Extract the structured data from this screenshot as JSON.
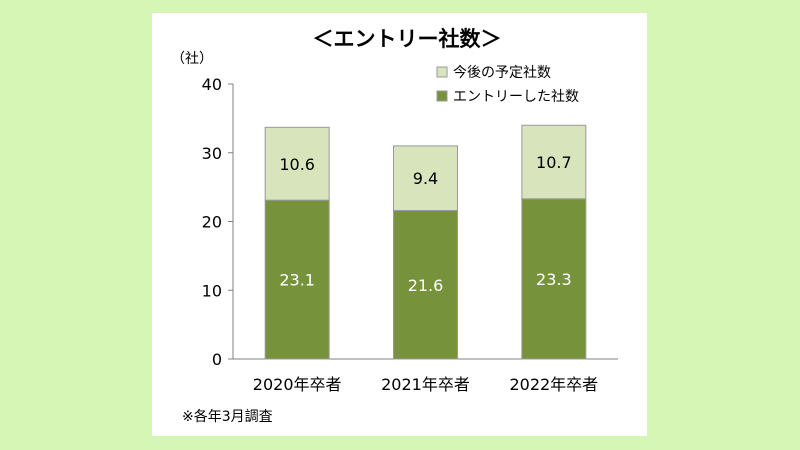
{
  "chart_data": {
    "type": "bar",
    "stacked": true,
    "title": "＜エントリー社数＞",
    "unit_label": "（社）",
    "categories": [
      "2020年卒者",
      "2021年卒者",
      "2022年卒者"
    ],
    "series": [
      {
        "name": "エントリーした社数",
        "values": [
          23.1,
          21.6,
          23.3
        ],
        "color": "#76933c"
      },
      {
        "name": "今後の予定社数",
        "values": [
          10.6,
          9.4,
          10.7
        ],
        "color": "#d8e4bc"
      }
    ],
    "ylim": [
      0,
      40
    ],
    "yticks": [
      0,
      10,
      20,
      30,
      40
    ],
    "legend_position": "top-right",
    "grid": false,
    "label_colors": {
      "エントリーした社数": "#ffffff",
      "今後の予定社数": "#000000"
    },
    "footnote": "※各年3月調査"
  }
}
